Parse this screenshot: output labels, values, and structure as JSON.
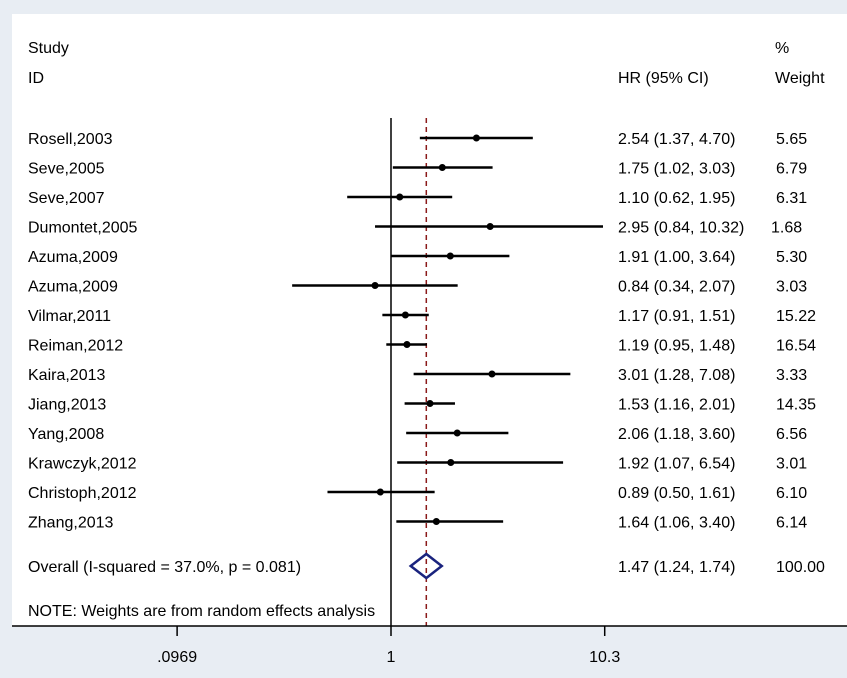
{
  "chart_data": {
    "type": "forest",
    "scale": "log",
    "header": {
      "study_line1": "Study",
      "study_line2": "ID",
      "hr_label": "HR (95% CI)",
      "weight_line1": "%",
      "weight_line2": "Weight"
    },
    "studies": [
      {
        "label": "Rosell,2003",
        "hr": 2.54,
        "lo": 1.37,
        "hi": 4.7,
        "ci_text": "2.54 (1.37, 4.70)",
        "weight": "5.65"
      },
      {
        "label": "Seve,2005",
        "hr": 1.75,
        "lo": 1.02,
        "hi": 3.03,
        "ci_text": "1.75 (1.02, 3.03)",
        "weight": "6.79"
      },
      {
        "label": "Seve,2007",
        "hr": 1.1,
        "lo": 0.62,
        "hi": 1.95,
        "ci_text": "1.10 (0.62, 1.95)",
        "weight": "6.31"
      },
      {
        "label": "Dumontet,2005",
        "hr": 2.95,
        "lo": 0.84,
        "hi": 10.32,
        "ci_text": "2.95 (0.84, 10.32)",
        "weight": "1.68"
      },
      {
        "label": "Azuma,2009",
        "hr": 1.91,
        "lo": 1.0,
        "hi": 3.64,
        "ci_text": "1.91 (1.00, 3.64)",
        "weight": "5.30"
      },
      {
        "label": "Azuma,2009",
        "hr": 0.84,
        "lo": 0.34,
        "hi": 2.07,
        "ci_text": "0.84 (0.34, 2.07)",
        "weight": "3.03"
      },
      {
        "label": "Vilmar,2011",
        "hr": 1.17,
        "lo": 0.91,
        "hi": 1.51,
        "ci_text": "1.17 (0.91, 1.51)",
        "weight": "15.22"
      },
      {
        "label": "Reiman,2012",
        "hr": 1.19,
        "lo": 0.95,
        "hi": 1.48,
        "ci_text": "1.19 (0.95, 1.48)",
        "weight": "16.54"
      },
      {
        "label": "Kaira,2013",
        "hr": 3.01,
        "lo": 1.28,
        "hi": 7.08,
        "ci_text": "3.01 (1.28, 7.08)",
        "weight": "3.33"
      },
      {
        "label": "Jiang,2013",
        "hr": 1.53,
        "lo": 1.16,
        "hi": 2.01,
        "ci_text": "1.53 (1.16, 2.01)",
        "weight": "14.35"
      },
      {
        "label": "Yang,2008",
        "hr": 2.06,
        "lo": 1.18,
        "hi": 3.6,
        "ci_text": "2.06 (1.18, 3.60)",
        "weight": "6.56"
      },
      {
        "label": "Krawczyk,2012",
        "hr": 1.92,
        "lo": 1.07,
        "hi": 6.54,
        "ci_text": "1.92 (1.07, 6.54)",
        "weight": "3.01"
      },
      {
        "label": "Christoph,2012",
        "hr": 0.89,
        "lo": 0.5,
        "hi": 1.61,
        "ci_text": "0.89 (0.50, 1.61)",
        "weight": "6.10"
      },
      {
        "label": "Zhang,2013",
        "hr": 1.64,
        "lo": 1.06,
        "hi": 3.4,
        "ci_text": "1.64 (1.06, 3.40)",
        "weight": "6.14"
      }
    ],
    "overall": {
      "label": "Overall  (I-squared = 37.0%, p = 0.081)",
      "hr": 1.47,
      "lo": 1.24,
      "hi": 1.74,
      "ci_text": "1.47 (1.24, 1.74)",
      "weight": "100.00"
    },
    "note": "NOTE: Weights are from random effects analysis",
    "x_ticks": [
      {
        "value": 0.0969,
        "label": ".0969"
      },
      {
        "value": 1,
        "label": "1"
      },
      {
        "value": 10.3,
        "label": "10.3"
      }
    ],
    "null_value": 1,
    "colors": {
      "background": "#e8edf3",
      "panel": "#ffffff",
      "lines": "#000000",
      "overall_diamond": "#1a237e",
      "overall_line": "#8b1a1a"
    }
  }
}
